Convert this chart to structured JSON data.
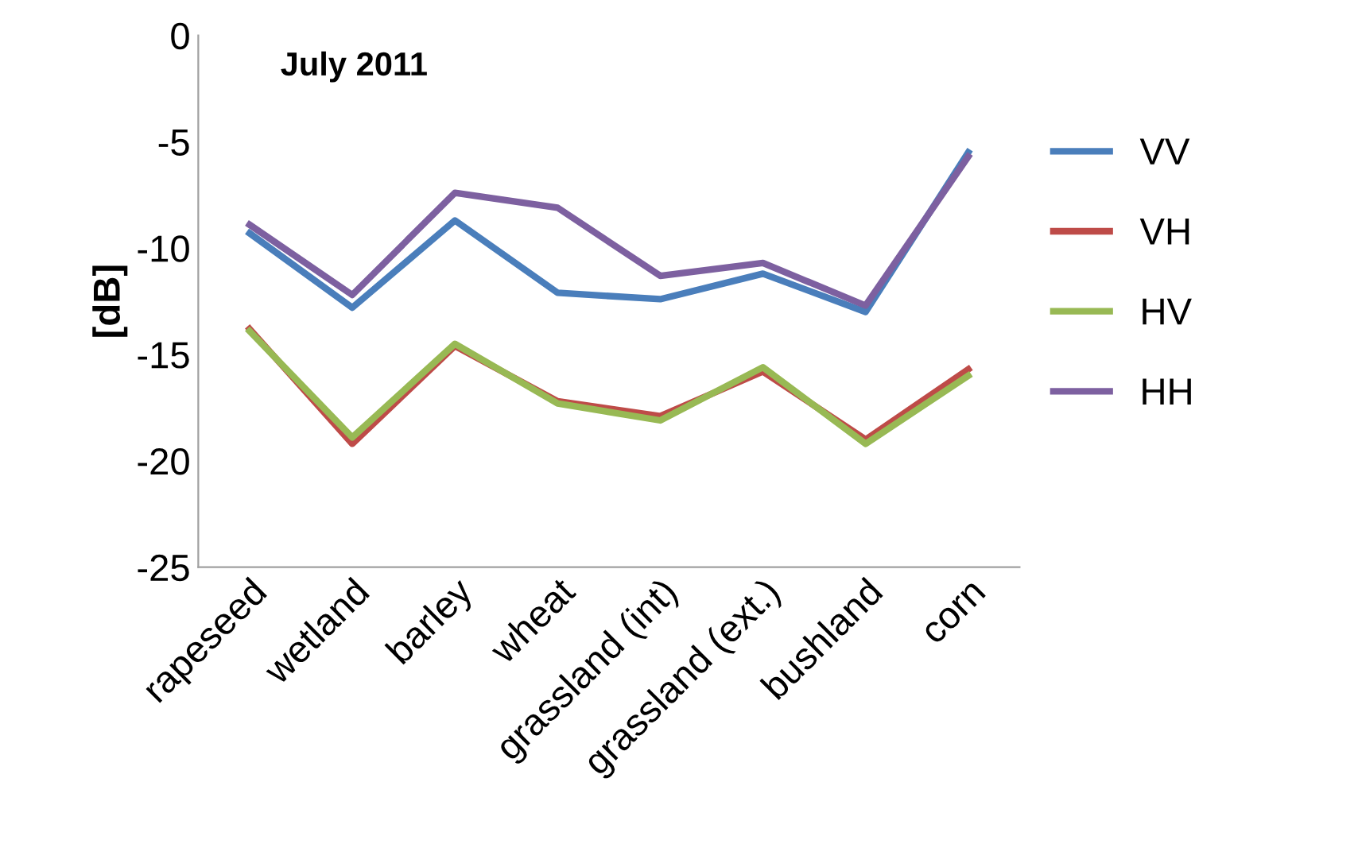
{
  "chart_data": {
    "type": "line",
    "title": "July 2011",
    "ylabel": "[dB]",
    "categories": [
      "rapeseed",
      "wetland",
      "barley",
      "wheat",
      "grassland (int)",
      "grassland (ext.)",
      "bushland",
      "corn"
    ],
    "series": [
      {
        "name": "VV",
        "color": "#4a7ebb",
        "values": [
          -9.3,
          -12.8,
          -8.7,
          -12.1,
          -12.4,
          -11.2,
          -13.0,
          -5.5
        ]
      },
      {
        "name": "VH",
        "color": "#be4b48",
        "values": [
          -13.8,
          -19.2,
          -14.6,
          -17.2,
          -17.9,
          -15.8,
          -19.0,
          -15.7
        ]
      },
      {
        "name": "HV",
        "color": "#98b954",
        "values": [
          -13.9,
          -18.9,
          -14.5,
          -17.3,
          -18.1,
          -15.6,
          -19.2,
          -16.0
        ]
      },
      {
        "name": "HH",
        "color": "#7d60a0",
        "values": [
          -8.9,
          -12.2,
          -7.4,
          -8.1,
          -11.3,
          -10.7,
          -12.7,
          -5.7
        ]
      }
    ],
    "ylim": [
      -25,
      0
    ],
    "yticks": [
      -25,
      -20,
      -15,
      -10,
      -5,
      0
    ],
    "grid": false,
    "legend": "right",
    "marker": "none",
    "line_style": "solid"
  }
}
